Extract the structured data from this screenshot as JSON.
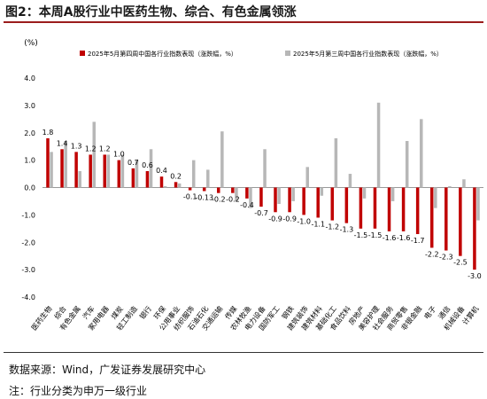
{
  "figure": {
    "title": "图2：本周A股行业中医药生物、综合、有色金属领涨",
    "source": "数据来源：Wind，广发证券发展研究中心",
    "note": "注：行业分类为申万一级行业"
  },
  "chart_data": {
    "type": "bar",
    "unit_label": "(%)",
    "ylim": [
      -4.0,
      4.0
    ],
    "yticks": [
      "4.0",
      "3.0",
      "2.0",
      "1.0",
      "0.0",
      "-1.0",
      "-2.0",
      "-3.0",
      "-4.0"
    ],
    "grid": false,
    "legend_position": "top",
    "categories": [
      "医药生物",
      "综合",
      "有色金属",
      "汽车",
      "家用电器",
      "煤炭",
      "轻工制造",
      "银行",
      "环保",
      "公用事业",
      "纺织服饰",
      "石油石化",
      "交通运输",
      "传媒",
      "农林牧渔",
      "电力设备",
      "国防军工",
      "钢铁",
      "建筑装饰",
      "建筑材料",
      "基础化工",
      "食品饮料",
      "房地产",
      "美容护理",
      "社会服务",
      "商贸零售",
      "非银金融",
      "电子",
      "通信",
      "机械设备",
      "计算机"
    ],
    "series": [
      {
        "name": "2025年5月第四周中国各行业指数表现（涨跌幅，%）",
        "color": "#c00000",
        "values": [
          1.8,
          1.4,
          1.3,
          1.2,
          1.2,
          1.0,
          0.7,
          0.6,
          0.4,
          0.2,
          -0.1,
          -0.13,
          -0.2,
          -0.2,
          -0.4,
          -0.7,
          -0.9,
          -0.9,
          -1.0,
          -1.1,
          -1.2,
          -1.3,
          -1.5,
          -1.5,
          -1.6,
          -1.6,
          -1.7,
          -2.2,
          -2.3,
          -2.5,
          -3.0
        ],
        "labels": [
          "1.8",
          "1.4",
          "1.3",
          "1.2",
          "1.2",
          "1.0",
          "0.7",
          "0.6",
          "0.4",
          "0.2",
          "-0.1",
          "-0.13",
          "-0.2",
          "-0.2",
          "-0.4",
          "-0.7",
          "-0.9",
          "-0.9",
          "-1.0",
          "-1.1",
          "-1.2",
          "-1.3",
          "-1.5",
          "-1.5",
          "-1.6",
          "-1.6",
          "-1.7",
          "-2.2",
          "-2.3",
          "-2.5",
          "-3.0"
        ]
      },
      {
        "name": "2025年5月第三周中国各行业指数表现（涨跌幅，%）",
        "color": "#b7b7b7",
        "values": [
          1.3,
          1.7,
          0.6,
          2.4,
          1.2,
          1.2,
          1.0,
          1.4,
          0.05,
          0.15,
          1.0,
          0.65,
          2.05,
          -0.5,
          -0.75,
          1.4,
          -0.6,
          -0.5,
          0.75,
          -0.3,
          1.8,
          0.5,
          -0.4,
          3.1,
          -0.5,
          1.7,
          2.5,
          -0.75,
          0.05,
          0.3,
          -1.2
        ]
      }
    ]
  }
}
